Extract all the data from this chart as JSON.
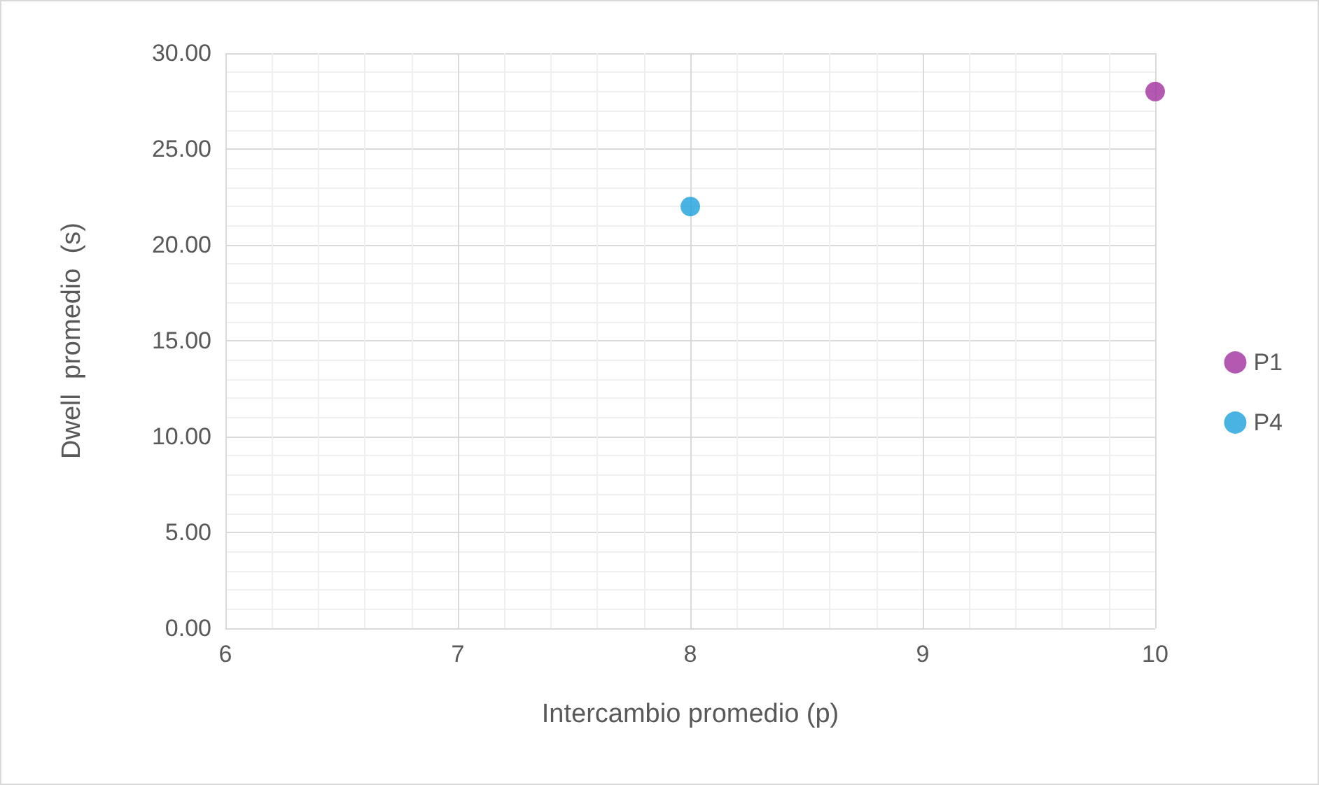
{
  "chart_data": {
    "type": "scatter",
    "xlabel": "Intercambio promedio (p)",
    "ylabel": "Dwell  promedio  (s)",
    "series": [
      {
        "name": "P1",
        "color": "#a0309e",
        "x": [
          10
        ],
        "values": [
          28
        ]
      },
      {
        "name": "P4",
        "color": "#1ba1dc",
        "x": [
          8
        ],
        "values": [
          22
        ]
      }
    ],
    "xlim": [
      6,
      10
    ],
    "xticks": [
      6,
      7,
      8,
      9,
      10
    ],
    "ylim": [
      0,
      30
    ],
    "yticks": [
      {
        "value": 0,
        "label": "0.00"
      },
      {
        "value": 5,
        "label": "5.00"
      },
      {
        "value": 10,
        "label": "10.00"
      },
      {
        "value": 15,
        "label": "15.00"
      },
      {
        "value": 20,
        "label": "20.00"
      },
      {
        "value": 25,
        "label": "25.00"
      },
      {
        "value": 30,
        "label": "30.00"
      }
    ],
    "grid": true,
    "legend": "right",
    "marker": "circle"
  }
}
